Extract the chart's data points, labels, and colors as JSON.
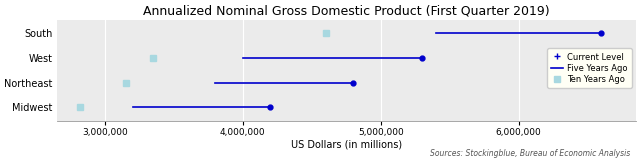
{
  "title": "Annualized Nominal Gross Domestic Product (First Quarter 2019)",
  "regions": [
    "South",
    "West",
    "Northeast",
    "Midwest"
  ],
  "current_level": [
    6600000,
    5300000,
    4800000,
    4200000
  ],
  "five_years_ago": [
    5400000,
    4000000,
    3800000,
    3200000
  ],
  "ten_years_ago": [
    4600000,
    3350000,
    3150000,
    2820000
  ],
  "xlim": [
    2650000,
    6850000
  ],
  "xlabel": "US Dollars (in millions)",
  "source": "Sources: Stockingblue, Bureau of Economic Analysis",
  "line_color": "#0000CC",
  "dot_color": "#0000CC",
  "ten_years_color": "#A8D8E0",
  "plot_bg_color": "#EBEBEB",
  "fig_bg_color": "#FFFFFF",
  "grid_color": "#FFFFFF",
  "legend_bg": "#FFFFF5",
  "xticks": [
    3000000,
    4000000,
    5000000,
    6000000
  ],
  "title_fontsize": 9,
  "label_fontsize": 7,
  "tick_fontsize": 6.5,
  "source_fontsize": 5.5
}
